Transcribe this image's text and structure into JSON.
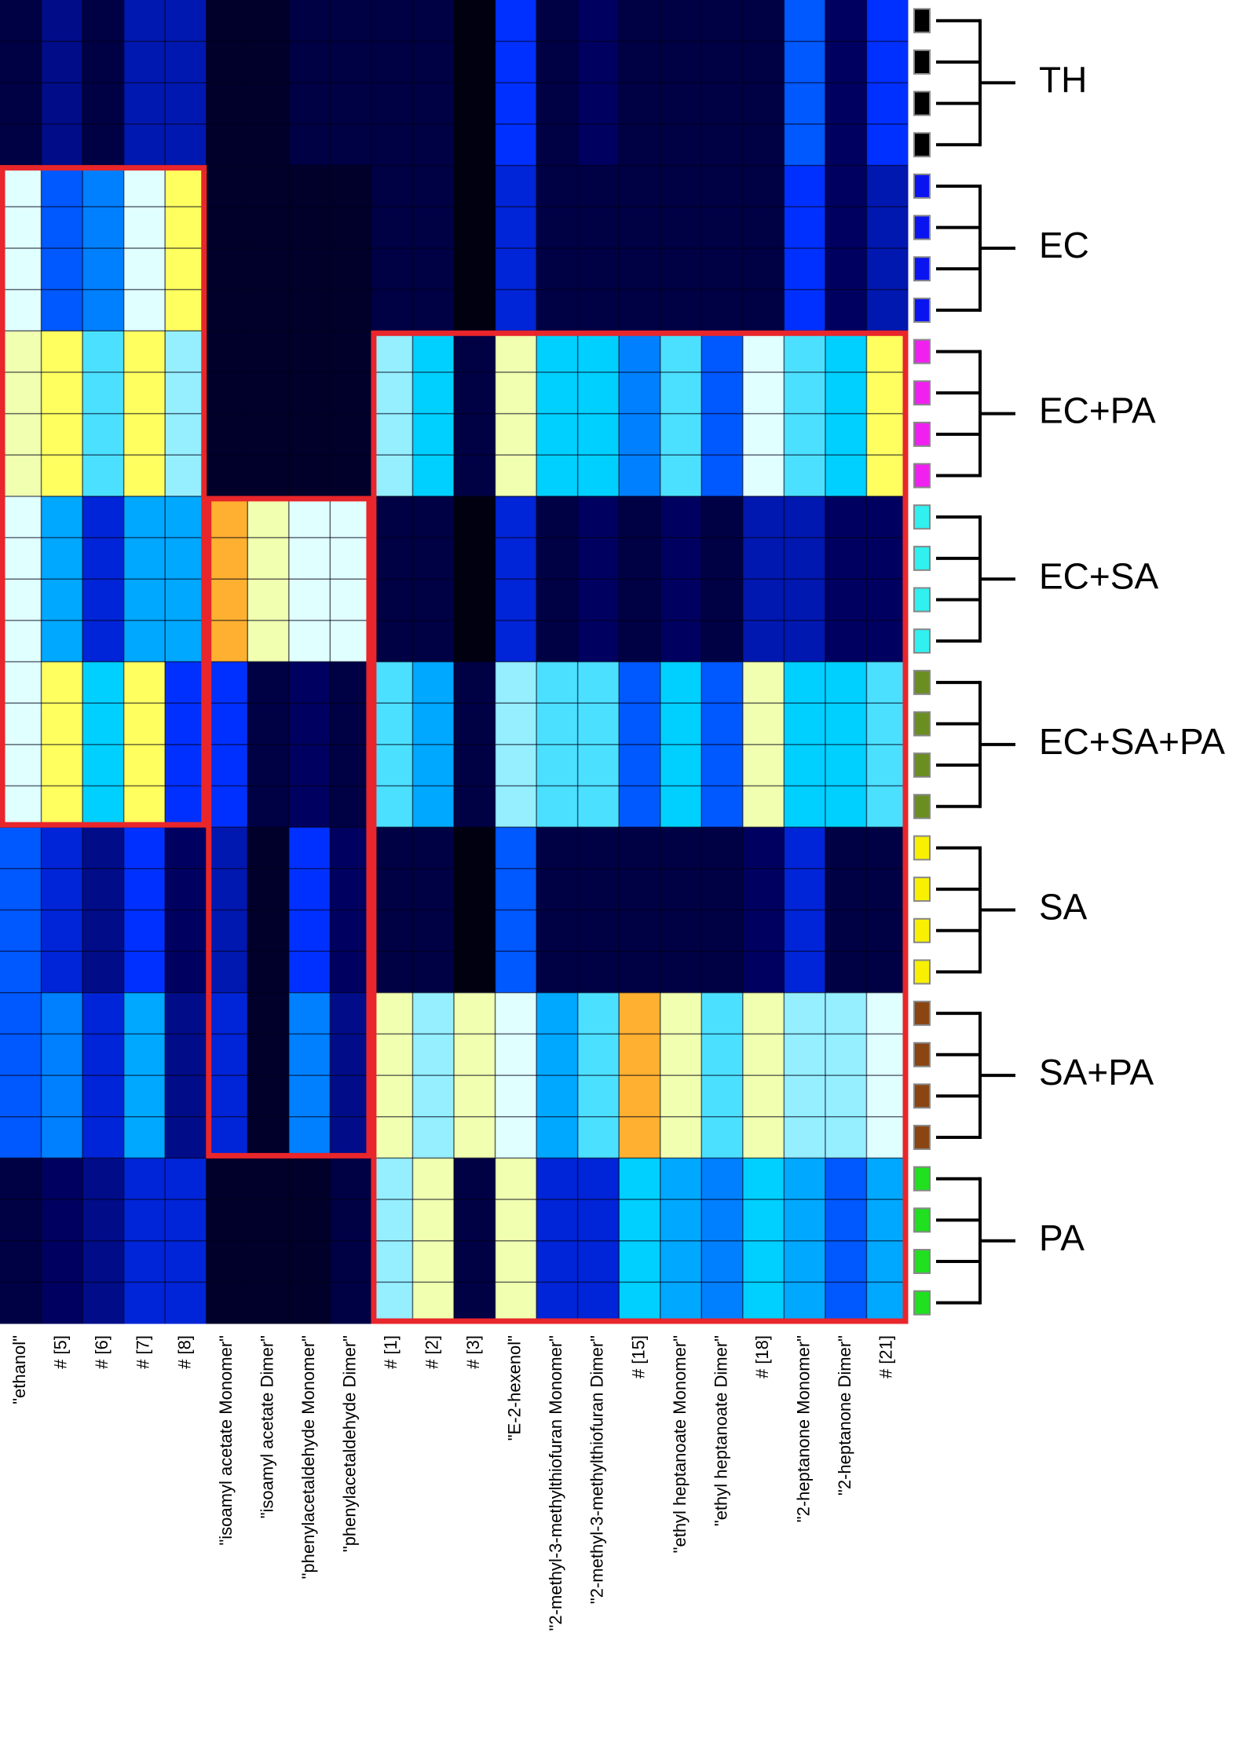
{
  "chart_data": {
    "type": "heatmap",
    "categories": [
      "\"ethanol\"",
      "# [5]",
      "# [6]",
      "# [7]",
      "# [8]",
      "\"isoamyl acetate  Monomer\"",
      "\"isoamyl acetate Dimer\"",
      "\"phenylacetaldehyde  Monomer\"",
      "\"phenylacetaldehyde  Dimer\"",
      "# [1]",
      "# [2]",
      "# [3]",
      "\"E-2-hexenol\"",
      "\"2-methyl-3-methylthiofuran  Monomer\"",
      "\"2-methyl-3-methylthiofuran  Dimer\"",
      "# [15]",
      "\"ethyl heptanoate  Monomer\"",
      "\"ethyl heptanoate  Dimer\"",
      "# [18]",
      "\"2-heptanone  Monomer\"",
      "\"2-heptanone  Dimer\"",
      "# [21]"
    ],
    "replicates": 4,
    "highlight_color": "#e8262b",
    "series": [
      {
        "name": "TH",
        "color": "#000000",
        "values": [
          0.1,
          0.2,
          0.1,
          0.25,
          0.25,
          0.05,
          0.05,
          0.1,
          0.1,
          0.1,
          0.1,
          0,
          0.35,
          0.1,
          0.15,
          0.1,
          0.1,
          0.1,
          0.1,
          0.4,
          0.15,
          0.35
        ]
      },
      {
        "name": "EC",
        "color": "#0a14f0",
        "values": [
          0.7,
          0.4,
          0.45,
          0.7,
          0.8,
          0.05,
          0.05,
          0.05,
          0.05,
          0.1,
          0.1,
          0,
          0.3,
          0.1,
          0.1,
          0.1,
          0.1,
          0.1,
          0.1,
          0.35,
          0.15,
          0.25
        ]
      },
      {
        "name": "EC+PA",
        "color": "#f020f0",
        "values": [
          0.75,
          0.8,
          0.6,
          0.8,
          0.65,
          0.05,
          0.05,
          0.05,
          0.05,
          0.65,
          0.55,
          0.1,
          0.75,
          0.55,
          0.55,
          0.45,
          0.6,
          0.4,
          0.7,
          0.6,
          0.55,
          0.8
        ]
      },
      {
        "name": "EC+SA",
        "color": "#30f0f0",
        "values": [
          0.7,
          0.5,
          0.3,
          0.5,
          0.5,
          0.85,
          0.75,
          0.7,
          0.7,
          0.1,
          0.1,
          0,
          0.3,
          0.1,
          0.15,
          0.1,
          0.15,
          0.1,
          0.25,
          0.25,
          0.15,
          0.15
        ]
      },
      {
        "name": "EC+SA+PA",
        "color": "#6b8e23",
        "values": [
          0.7,
          0.8,
          0.55,
          0.8,
          0.35,
          0.35,
          0.1,
          0.15,
          0.1,
          0.6,
          0.5,
          0.1,
          0.65,
          0.6,
          0.6,
          0.4,
          0.55,
          0.4,
          0.75,
          0.55,
          0.55,
          0.6
        ]
      },
      {
        "name": "SA",
        "color": "#f8f000",
        "values": [
          0.4,
          0.3,
          0.2,
          0.35,
          0.15,
          0.25,
          0.05,
          0.35,
          0.15,
          0.1,
          0.1,
          0,
          0.4,
          0.1,
          0.1,
          0.1,
          0.1,
          0.1,
          0.15,
          0.3,
          0.1,
          0.1
        ]
      },
      {
        "name": "SA+PA",
        "color": "#8b4513",
        "values": [
          0.4,
          0.45,
          0.3,
          0.5,
          0.2,
          0.3,
          0.05,
          0.45,
          0.2,
          0.75,
          0.65,
          0.75,
          0.7,
          0.5,
          0.6,
          0.85,
          0.75,
          0.6,
          0.75,
          0.65,
          0.65,
          0.7
        ]
      },
      {
        "name": "PA",
        "color": "#20e020",
        "values": [
          0.1,
          0.15,
          0.2,
          0.3,
          0.3,
          0.05,
          0.05,
          0.05,
          0.1,
          0.65,
          0.75,
          0.1,
          0.75,
          0.3,
          0.3,
          0.55,
          0.5,
          0.45,
          0.55,
          0.5,
          0.4,
          0.5
        ]
      }
    ]
  }
}
